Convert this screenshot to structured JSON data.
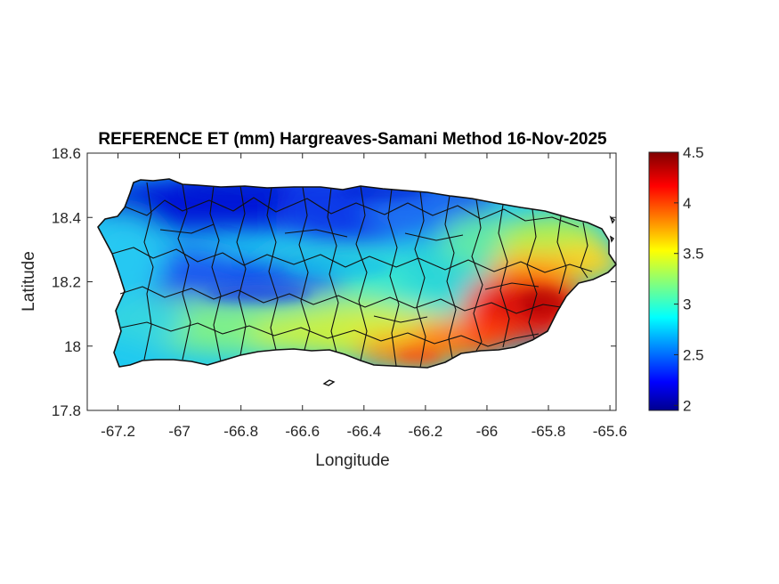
{
  "figure": {
    "title": "REFERENCE ET (mm) Hargreaves-Samani Method  16-Nov-2025"
  },
  "map": {
    "xlabel": "Longitude",
    "ylabel": "Latitude",
    "xlim": [
      -67.3,
      -65.58
    ],
    "ylim": [
      17.8,
      18.6
    ],
    "xticks": [
      -67.2,
      -67,
      -66.8,
      -66.6,
      -66.4,
      -66.2,
      -66,
      -65.8,
      -65.6
    ],
    "xtick_labels": [
      "-67.2",
      "-67",
      "-66.8",
      "-66.6",
      "-66.4",
      "-66.2",
      "-66",
      "-65.8",
      "-65.6"
    ],
    "yticks": [
      17.8,
      18,
      18.2,
      18.4,
      18.6
    ],
    "ytick_labels": [
      "17.8",
      "18",
      "18.2",
      "18.4",
      "18.6"
    ],
    "variable": "Reference evapotranspiration (mm), Hargreaves-Samani",
    "regions_described": [
      {
        "area": "north-central coast",
        "value_range": [
          1.9,
          2.4
        ]
      },
      {
        "area": "west-central interior",
        "value_range": [
          2.0,
          2.5
        ]
      },
      {
        "area": "west coast",
        "value_range": [
          2.8,
          3.1
        ]
      },
      {
        "area": "central south",
        "value_range": [
          3.0,
          3.6
        ]
      },
      {
        "area": "south coast (Salinas-Guayama)",
        "value_range": [
          3.8,
          4.3
        ]
      },
      {
        "area": "southeast (Humacao-Yabucoa)",
        "value_range": [
          4.2,
          4.5
        ]
      },
      {
        "area": "northeast (Luquillo-Fajardo)",
        "value_range": [
          3.3,
          3.8
        ]
      }
    ]
  },
  "colorbar": {
    "colormap": "jet",
    "vmin": 1.95,
    "vmax": 4.5,
    "ticks": [
      2,
      2.5,
      3,
      3.5,
      4,
      4.5
    ],
    "tick_labels": [
      "2",
      "2.5",
      "3",
      "3.5",
      "4",
      "4.5"
    ]
  }
}
